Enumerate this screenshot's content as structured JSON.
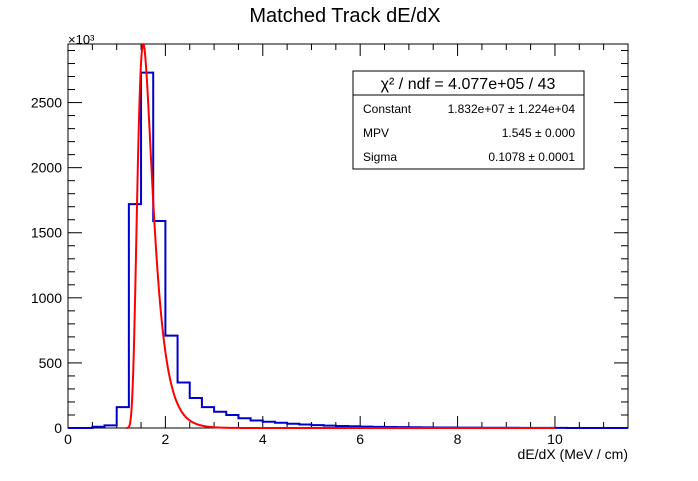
{
  "chart_data": {
    "type": "histogram",
    "title": "Matched Track dE/dX",
    "xlabel": "dE/dX (MeV / cm)",
    "ylabel": "",
    "y_multiplier_label": "×10³",
    "xlim": [
      0,
      11.5
    ],
    "ylim": [
      0,
      2950
    ],
    "x_ticks": [
      0,
      2,
      4,
      6,
      8,
      10
    ],
    "y_ticks": [
      0,
      500,
      1000,
      1500,
      2000,
      2500
    ],
    "grid": false,
    "colors": {
      "histogram": "#0000cc",
      "fit": "#ff0000"
    },
    "histogram": {
      "bin_edges": [
        0,
        0.25,
        0.5,
        0.75,
        1.0,
        1.25,
        1.5,
        1.75,
        2.0,
        2.25,
        2.5,
        2.75,
        3.0,
        3.25,
        3.5,
        3.75,
        4.0,
        4.25,
        4.5,
        4.75,
        5.0,
        5.25,
        5.5,
        5.75,
        6.0,
        6.25,
        6.5,
        6.75,
        7.0,
        7.25,
        7.5,
        7.75,
        8.0,
        8.25,
        8.5,
        8.75,
        9.0,
        9.25,
        9.5,
        9.75,
        10.0,
        10.25,
        10.5,
        10.75,
        11.0,
        11.25,
        11.5
      ],
      "values": [
        0,
        0,
        10,
        20,
        160,
        1720,
        2730,
        1590,
        710,
        350,
        230,
        160,
        125,
        100,
        75,
        58,
        48,
        40,
        33,
        27,
        22,
        18,
        15,
        13,
        11,
        9,
        8,
        7,
        6,
        5,
        4,
        4,
        3,
        3,
        2,
        2,
        2,
        1,
        1,
        1,
        1,
        0,
        0,
        0,
        0,
        0
      ]
    },
    "fit": {
      "function": "landau",
      "x_range": [
        1.2,
        10.0
      ],
      "stats": {
        "chi2_label": "χ² / ndf = 4.077e+05 / 43",
        "rows": [
          {
            "name": "Constant",
            "value": "1.832e+07 ± 1.224e+04"
          },
          {
            "name": "MPV",
            "value": "1.545 ± 0.000"
          },
          {
            "name": "Sigma",
            "value": "0.1078 ± 0.0001"
          }
        ]
      }
    }
  }
}
